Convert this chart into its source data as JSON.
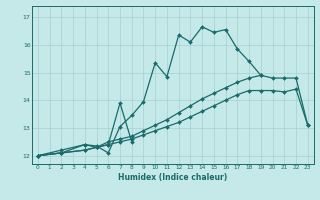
{
  "xlabel": "Humidex (Indice chaleur)",
  "background_color": "#c5e8e8",
  "grid_color": "#a8d0d0",
  "line_color": "#1a6b6b",
  "xlim": [
    -0.5,
    23.5
  ],
  "ylim": [
    11.7,
    17.4
  ],
  "yticks": [
    12,
    13,
    14,
    15,
    16,
    17
  ],
  "xticks": [
    0,
    1,
    2,
    3,
    4,
    5,
    6,
    7,
    8,
    9,
    10,
    11,
    12,
    13,
    14,
    15,
    16,
    17,
    18,
    19,
    20,
    21,
    22,
    23
  ],
  "series": [
    {
      "x": [
        0,
        2,
        4,
        5,
        6,
        7,
        8,
        9,
        10,
        11,
        12,
        13,
        14,
        15,
        16,
        17,
        18,
        19
      ],
      "y": [
        12.0,
        12.2,
        12.4,
        12.35,
        12.1,
        13.05,
        13.45,
        13.95,
        15.35,
        14.85,
        16.35,
        16.1,
        16.65,
        16.45,
        16.55,
        15.85,
        15.4,
        14.9
      ]
    },
    {
      "x": [
        0,
        2,
        4,
        5,
        6,
        7,
        8
      ],
      "y": [
        12.0,
        12.1,
        12.4,
        12.3,
        12.4,
        13.9,
        12.5
      ]
    },
    {
      "x": [
        0,
        2,
        4,
        5,
        6,
        7,
        8,
        9,
        10,
        11,
        12,
        13,
        14,
        15,
        16,
        17,
        18,
        19,
        20,
        21,
        22,
        23
      ],
      "y": [
        12.0,
        12.1,
        12.2,
        12.3,
        12.4,
        12.5,
        12.6,
        12.75,
        12.9,
        13.05,
        13.2,
        13.4,
        13.6,
        13.8,
        14.0,
        14.2,
        14.35,
        14.35,
        14.35,
        14.3,
        14.4,
        13.1
      ]
    },
    {
      "x": [
        0,
        2,
        4,
        5,
        6,
        7,
        8,
        9,
        10,
        11,
        12,
        13,
        14,
        15,
        16,
        17,
        18,
        19,
        20,
        21,
        22,
        23
      ],
      "y": [
        12.0,
        12.1,
        12.2,
        12.3,
        12.5,
        12.6,
        12.7,
        12.9,
        13.1,
        13.3,
        13.55,
        13.8,
        14.05,
        14.25,
        14.45,
        14.65,
        14.8,
        14.9,
        14.8,
        14.8,
        14.8,
        13.1
      ]
    }
  ]
}
